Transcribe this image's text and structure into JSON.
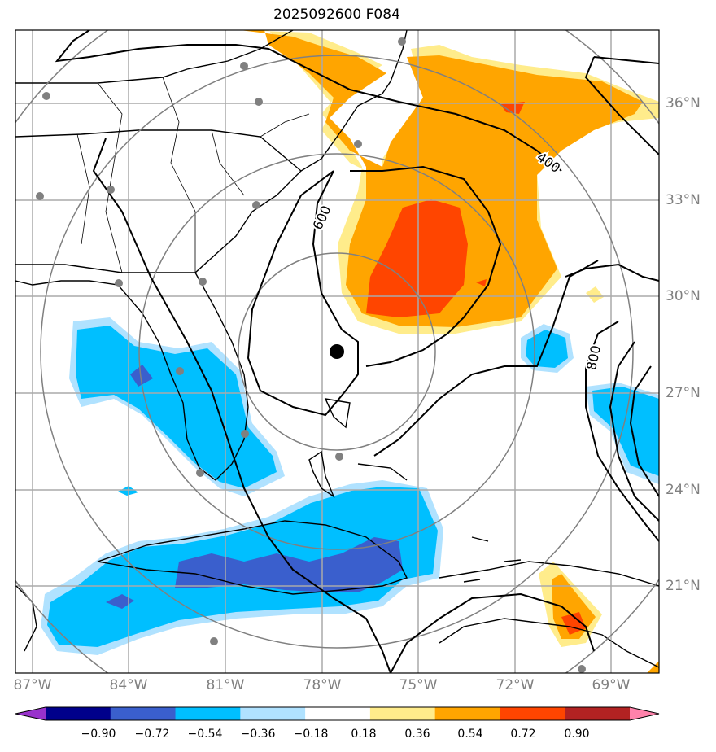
{
  "title": "2025092600 F084",
  "lon_labels": [
    "87°W",
    "84°W",
    "81°W",
    "78°W",
    "75°W",
    "72°W",
    "69°W"
  ],
  "lat_labels": [
    "36°N",
    "33°N",
    "30°N",
    "27°N",
    "24°N",
    "21°N"
  ],
  "contour_labels": [
    "400",
    "600",
    "800"
  ],
  "colorbar": {
    "ticks": [
      "−0.90",
      "−0.72",
      "−0.54",
      "−0.36",
      "−0.18",
      "0.18",
      "0.36",
      "0.54",
      "0.72",
      "0.90"
    ],
    "colors": [
      "#9932cc",
      "#00008b",
      "#3a5fcd",
      "#00bfff",
      "#b0e2ff",
      "#ffffff",
      "#ffec8b",
      "#ffa500",
      "#ff4500",
      "#b22222",
      "#ff82ab"
    ]
  },
  "colors": {
    "grid": "#aaaaaa",
    "range_ring": "#808080",
    "station": "#808080",
    "center": "#000000"
  }
}
